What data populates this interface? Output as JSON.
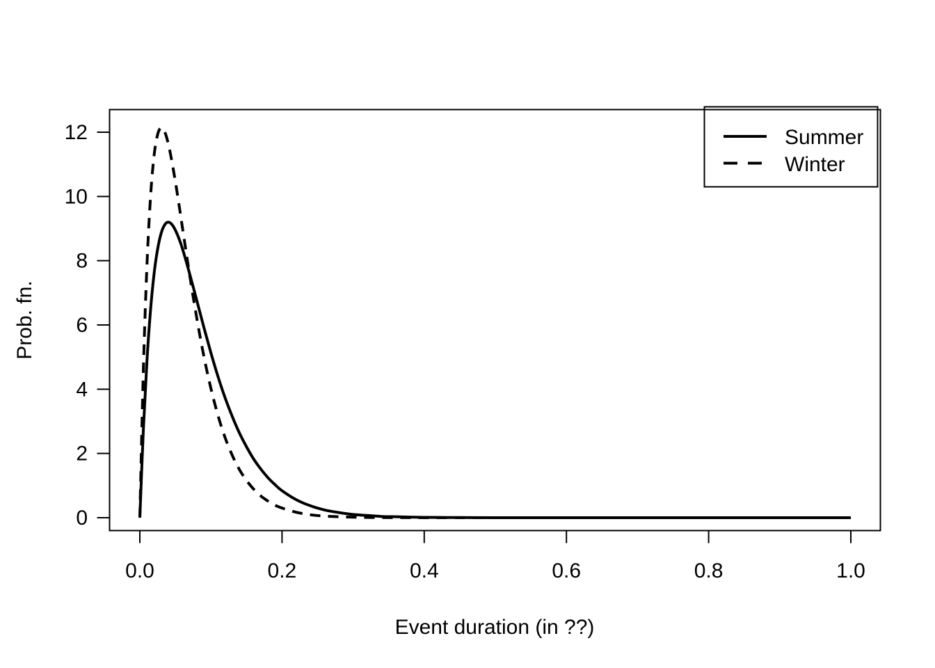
{
  "figure": {
    "background": "#ffffff",
    "line_color": "#000000",
    "text_color": "#000000"
  },
  "chart_data": {
    "type": "line",
    "title": "",
    "xlabel": "Event duration (in ??)",
    "ylabel": "Prob. fn.",
    "xlim": [
      0,
      1
    ],
    "ylim": [
      0,
      12.2
    ],
    "grid": false,
    "legend_position": "topright",
    "x_tick_labels": [
      "0.0",
      "0.2",
      "0.4",
      "0.6",
      "0.8",
      "1.0"
    ],
    "x_tick_values": [
      0,
      0.2,
      0.4,
      0.6,
      0.8,
      1.0
    ],
    "y_tick_labels": [
      "0",
      "2",
      "4",
      "6",
      "8",
      "10",
      "12"
    ],
    "y_tick_values": [
      0,
      2,
      4,
      6,
      8,
      10,
      12
    ],
    "x": [
      0,
      0.005,
      0.01,
      0.015,
      0.02,
      0.025,
      0.03,
      0.035,
      0.04,
      0.045,
      0.05,
      0.055,
      0.06,
      0.07,
      0.08,
      0.09,
      0.1,
      0.11,
      0.12,
      0.13,
      0.14,
      0.15,
      0.16,
      0.17,
      0.18,
      0.19,
      0.2,
      0.22,
      0.24,
      0.26,
      0.28,
      0.3,
      0.32,
      0.34,
      0.36,
      0.38,
      0.4,
      0.45,
      0.5,
      0.6,
      0.7,
      0.8,
      0.9,
      1.0
    ],
    "series": [
      {
        "name": "Summer",
        "line_style": "solid",
        "values": [
          0,
          2.76,
          4.87,
          6.44,
          7.58,
          8.36,
          8.86,
          9.12,
          9.2,
          9.13,
          8.95,
          8.69,
          8.37,
          7.6,
          6.77,
          5.93,
          5.13,
          4.39,
          3.73,
          3.15,
          2.64,
          2.21,
          1.83,
          1.52,
          1.25,
          1.03,
          0.84,
          0.56,
          0.37,
          0.24,
          0.16,
          0.1,
          0.07,
          0.04,
          0.03,
          0.02,
          0.011,
          0.004,
          0.001,
          0,
          0,
          0,
          0,
          0
        ]
      },
      {
        "name": "Winter",
        "line_style": "dashed",
        "values": [
          0,
          4.62,
          7.83,
          9.96,
          11.26,
          11.93,
          12.14,
          12.01,
          11.64,
          11.1,
          10.46,
          9.76,
          9.02,
          7.57,
          6.22,
          5.03,
          4.02,
          3.18,
          2.49,
          1.94,
          1.5,
          1.16,
          0.89,
          0.68,
          0.52,
          0.39,
          0.3,
          0.17,
          0.09,
          0.05,
          0.03,
          0.016,
          0.009,
          0.005,
          0.003,
          0.002,
          0.001,
          0,
          0,
          0,
          0,
          0,
          0,
          0
        ]
      }
    ]
  }
}
